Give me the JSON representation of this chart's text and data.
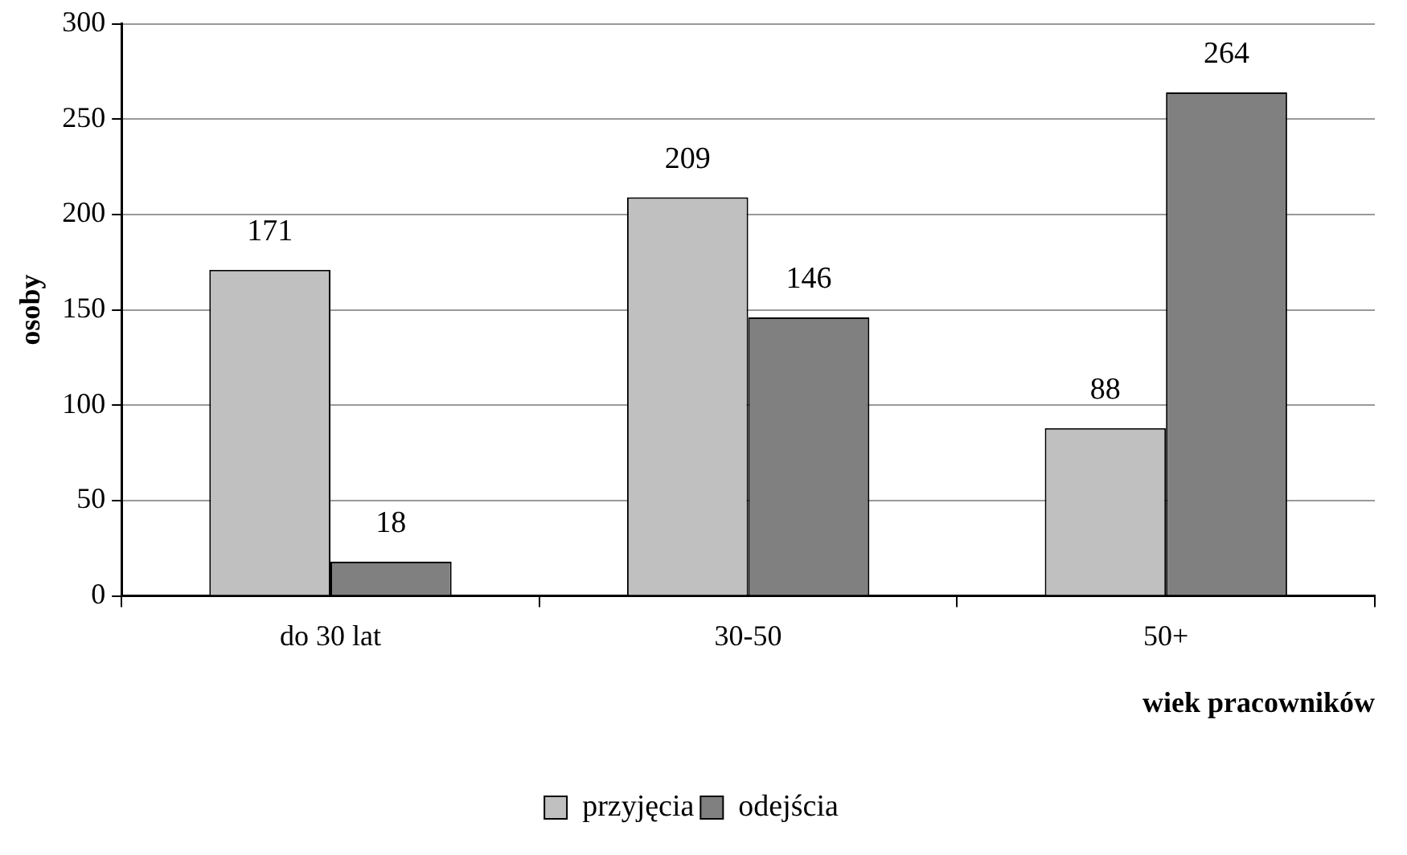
{
  "chart_data": {
    "type": "bar",
    "xlabel": "wiek pracowników",
    "ylabel": "osoby",
    "categories": [
      "do 30 lat",
      "30-50",
      "50+"
    ],
    "series": [
      {
        "name": "przyjęcia",
        "color": "#c0c0c0",
        "values": [
          171,
          209,
          88
        ]
      },
      {
        "name": "odejścia",
        "color": "#808080",
        "values": [
          18,
          146,
          264
        ]
      }
    ],
    "ylim": [
      0,
      300
    ],
    "yticks": [
      0,
      50,
      100,
      150,
      200,
      250,
      300
    ],
    "grid": "y",
    "legend": "bottom",
    "data_labels": true
  }
}
